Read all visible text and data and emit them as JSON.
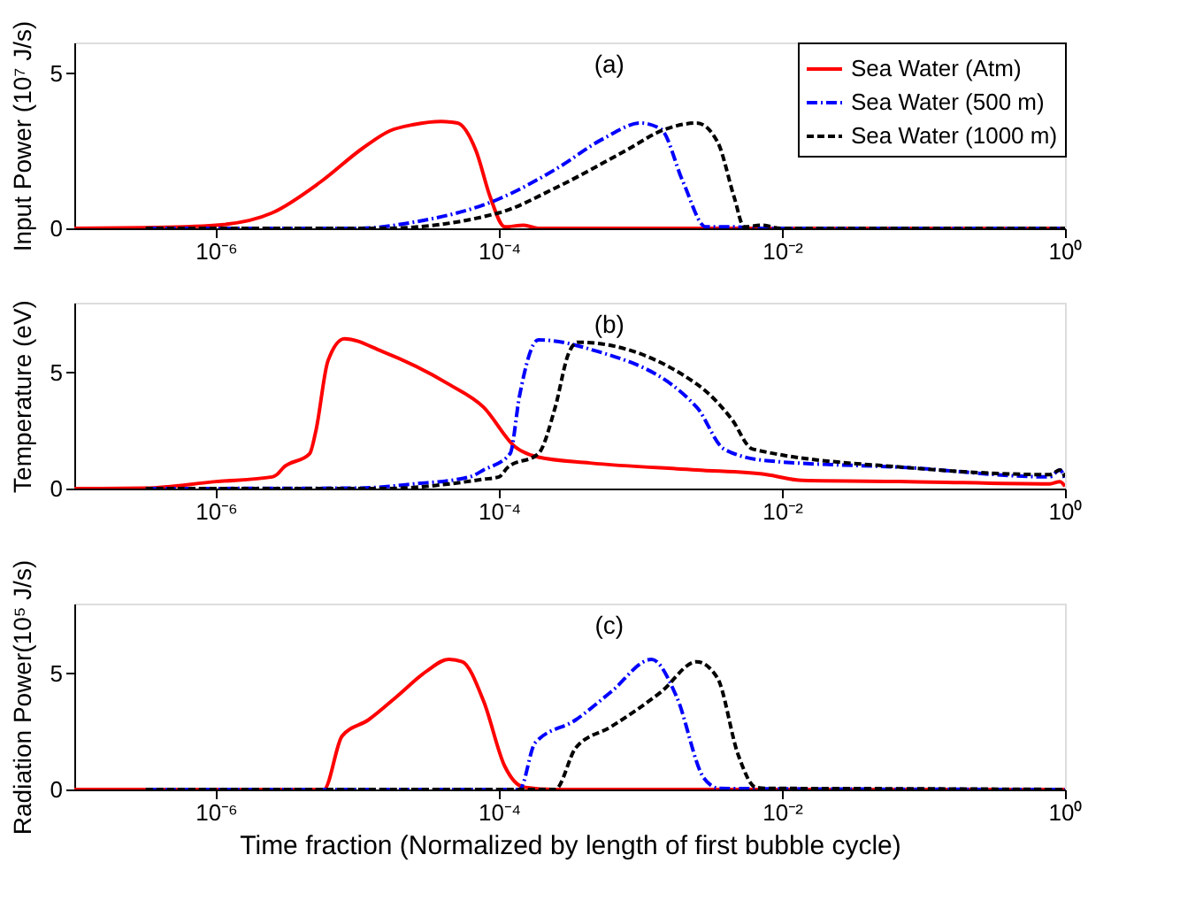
{
  "chart_data": [
    {
      "type": "line",
      "ylabel": "Input Power (10⁷ J/s)",
      "annotations": [
        "(a)"
      ],
      "log": "x",
      "legend": "top right",
      "grid": false,
      "xlim": [
        1e-07,
        1
      ],
      "xticks": [
        {
          "value": 1e-06,
          "label": "10⁻⁶"
        },
        {
          "value": 0.0001,
          "label": "10⁻⁴"
        },
        {
          "value": 0.01,
          "label": "10⁻²"
        },
        {
          "value": 1,
          "label": "10⁰"
        }
      ],
      "ylim": [
        0,
        6
      ],
      "yticks": [
        0,
        5
      ],
      "series": [
        {
          "name": "Sea Water (Atm)",
          "color": "#ff0000",
          "line_style": "solid",
          "x": [
            1e-07,
            3.2e-07,
            1e-06,
            2.5e-06,
            5.5e-06,
            1.1e-05,
            1.7e-05,
            2.5e-05,
            3.9e-05,
            5.1e-05,
            6.9e-05,
            8.7e-05,
            0.00011,
            0.00015,
            0.00019,
            1
          ],
          "values": [
            0,
            0.02,
            0.1,
            0.5,
            1.5,
            2.6,
            3.15,
            3.35,
            3.45,
            3.4,
            2.5,
            1.0,
            0.05,
            0.1,
            0,
            0
          ]
        },
        {
          "name": "Sea Water (500 m)",
          "color": "#0000ff",
          "line_style": "dashdot",
          "x": [
            3.2e-07,
            1e-05,
            2.5e-05,
            0.0001,
            0.00025,
            0.00055,
            0.001,
            0.0014,
            0.002,
            0.0029,
            0.0044,
            0.0078,
            1
          ],
          "values": [
            0,
            0,
            0.2,
            0.95,
            1.9,
            2.9,
            3.4,
            3.2,
            1.5,
            0.05,
            0.05,
            0,
            0
          ]
        },
        {
          "name": "Sea Water (1000 m)",
          "color": "#000000",
          "line_style": "dashed",
          "x": [
            3.2e-07,
            1.5e-05,
            0.0001,
            0.00025,
            0.00078,
            0.0015,
            0.0025,
            0.0035,
            0.0046,
            0.0054,
            0.0072,
            0.0098,
            1
          ],
          "values": [
            0,
            0,
            0.5,
            1.3,
            2.5,
            3.2,
            3.4,
            2.8,
            1.0,
            0.05,
            0.1,
            0,
            0
          ]
        }
      ]
    },
    {
      "type": "line",
      "ylabel": "Temperature (eV)",
      "annotations": [
        "(b)"
      ],
      "log": "x",
      "grid": false,
      "xlim": [
        1e-07,
        1
      ],
      "xticks": [
        {
          "value": 1e-06,
          "label": "10⁻⁶"
        },
        {
          "value": 0.0001,
          "label": "10⁻⁴"
        },
        {
          "value": 0.01,
          "label": "10⁻²"
        },
        {
          "value": 1,
          "label": "10⁰"
        }
      ],
      "ylim": [
        0,
        8
      ],
      "yticks": [
        0,
        5
      ],
      "series": [
        {
          "color": "#ff0000",
          "line_style": "solid",
          "x": [
            1e-07,
            3.2e-07,
            1e-06,
            2.5e-06,
            2.7e-06,
            3e-06,
            4.6e-06,
            5.1e-06,
            6.2e-06,
            8.1e-06,
            1.5e-05,
            4.4e-05,
            7.8e-05,
            0.00013,
            0.00019,
            0.00044,
            0.0025,
            0.0078,
            0.014,
            0.078,
            0.78,
            0.92,
            1
          ],
          "values": [
            0,
            0.02,
            0.3,
            0.5,
            0.6,
            0.9,
            1.5,
            2.5,
            5.5,
            6.45,
            5.9,
            4.5,
            3.5,
            1.8,
            1.35,
            1.1,
            0.8,
            0.6,
            0.35,
            0.3,
            0.2,
            0.3,
            0.1
          ]
        },
        {
          "color": "#0000ff",
          "line_style": "dashdot",
          "x": [
            3.2e-07,
            1e-05,
            2.5e-05,
            6.2e-05,
            7.8e-05,
            0.00012,
            0.00014,
            0.00019,
            0.00044,
            0.0025,
            0.0039,
            0.0078,
            0.078,
            0.78,
            0.92,
            1
          ],
          "values": [
            0,
            0.02,
            0.2,
            0.5,
            0.8,
            1.5,
            4.0,
            6.4,
            6.0,
            3.5,
            1.7,
            1.2,
            0.9,
            0.5,
            0.8,
            0.4
          ]
        },
        {
          "color": "#000000",
          "line_style": "dashed",
          "x": [
            3.2e-07,
            1.5e-05,
            7.8e-05,
            0.0001,
            0.000115,
            0.00019,
            0.00025,
            0.00031,
            0.00036,
            0.0025,
            0.0044,
            0.0062,
            0.078,
            0.78,
            0.92,
            1
          ],
          "values": [
            0,
            0,
            0.4,
            0.5,
            0.9,
            1.5,
            3.5,
            5.8,
            6.3,
            4.5,
            3.0,
            1.7,
            0.9,
            0.6,
            0.8,
            0.5
          ]
        }
      ]
    },
    {
      "type": "line",
      "ylabel": "Radiation Power(10⁵ J/s)",
      "xlabel": "Time fraction (Normalized by length of first bubble cycle)",
      "annotations": [
        "(c)"
      ],
      "log": "x",
      "grid": false,
      "xlim": [
        1e-07,
        1
      ],
      "xticks": [
        {
          "value": 1e-06,
          "label": "10⁻⁶"
        },
        {
          "value": 0.0001,
          "label": "10⁻⁴"
        },
        {
          "value": 0.01,
          "label": "10⁻²"
        },
        {
          "value": 1,
          "label": "10⁰"
        }
      ],
      "ylim": [
        0,
        8
      ],
      "yticks": [
        0,
        5
      ],
      "series": [
        {
          "color": "#ff0000",
          "line_style": "solid",
          "x": [
            1e-07,
            5.8e-06,
            7.8e-06,
            1.2e-05,
            1.9e-05,
            3.1e-05,
            4.4e-05,
            5.5e-05,
            7.8e-05,
            0.00011,
            0.00015,
            0.00025,
            1
          ],
          "values": [
            0,
            0,
            2.3,
            3.0,
            4.0,
            5.1,
            5.6,
            5.5,
            3.8,
            1.0,
            0.1,
            0,
            0
          ]
        },
        {
          "color": "#0000ff",
          "line_style": "dashdot",
          "x": [
            3.2e-07,
            0.00014,
            0.00018,
            0.00035,
            0.00062,
            0.0012,
            0.0018,
            0.0028,
            0.0036,
            0.0078,
            1
          ],
          "values": [
            0,
            0,
            2.0,
            3.0,
            4.2,
            5.6,
            4.0,
            0.5,
            0.05,
            0.03,
            0
          ]
        },
        {
          "color": "#000000",
          "line_style": "dashed",
          "x": [
            3.2e-07,
            0.00025,
            0.00035,
            0.00062,
            0.0014,
            0.0025,
            0.0035,
            0.0049,
            0.0065,
            0.0078,
            0.078,
            1
          ],
          "values": [
            0,
            0,
            1.8,
            2.7,
            4.2,
            5.5,
            4.8,
            1.5,
            0.1,
            0.05,
            0.03,
            0
          ]
        }
      ]
    }
  ]
}
